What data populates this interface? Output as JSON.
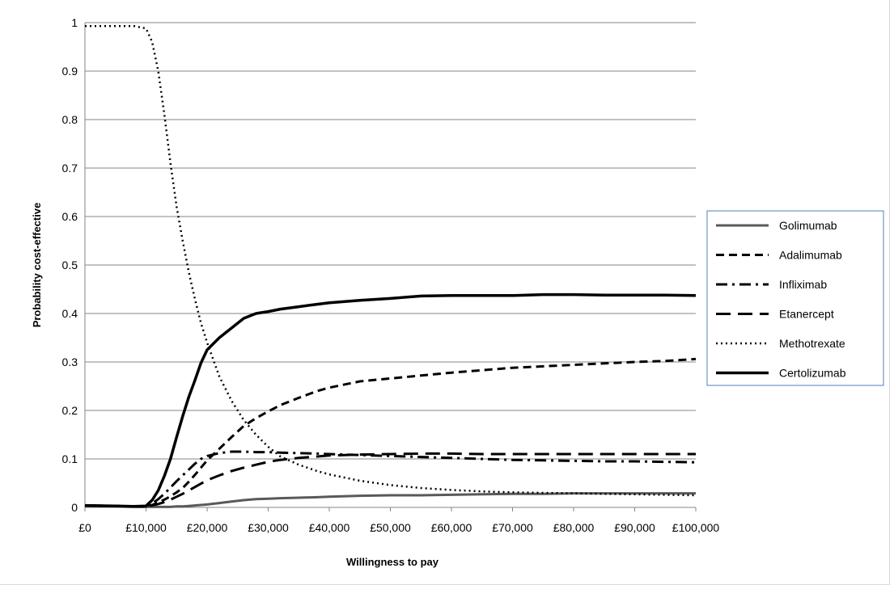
{
  "chart_data": {
    "type": "line",
    "title": "",
    "xlabel": "Willingness to pay",
    "ylabel": "Probability cost-effective",
    "xlim": [
      0,
      100000
    ],
    "ylim": [
      0,
      1
    ],
    "x_ticks": [
      "£0",
      "£10,000",
      "£20,000",
      "£30,000",
      "£40,000",
      "£50,000",
      "£60,000",
      "£70,000",
      "£80,000",
      "£90,000",
      "£100,000"
    ],
    "y_ticks": [
      "0",
      "0.1",
      "0.2",
      "0.3",
      "0.4",
      "0.5",
      "0.6",
      "0.7",
      "0.8",
      "0.9",
      "1"
    ],
    "grid": "horizontal",
    "legend_position": "right",
    "x": [
      0,
      5000,
      8000,
      10000,
      11000,
      12000,
      13000,
      14000,
      15000,
      16000,
      17000,
      18000,
      19000,
      20000,
      22000,
      24000,
      26000,
      28000,
      30000,
      32000,
      35000,
      38000,
      40000,
      45000,
      50000,
      55000,
      60000,
      65000,
      70000,
      75000,
      80000,
      85000,
      90000,
      95000,
      100000
    ],
    "series": [
      {
        "name": "Golimumab",
        "color": "#595959",
        "dash": "solid",
        "width": 3,
        "values": [
          0.003,
          0.002,
          0.001,
          0.001,
          0.001,
          0.001,
          0.001,
          0.001,
          0.002,
          0.002,
          0.003,
          0.004,
          0.005,
          0.006,
          0.009,
          0.012,
          0.015,
          0.017,
          0.018,
          0.019,
          0.02,
          0.021,
          0.022,
          0.024,
          0.025,
          0.025,
          0.026,
          0.027,
          0.028,
          0.028,
          0.029,
          0.029,
          0.029,
          0.029,
          0.029
        ]
      },
      {
        "name": "Adalimumab",
        "color": "#000000",
        "dash": "10,6",
        "width": 3,
        "values": [
          0.004,
          0.003,
          0.002,
          0.002,
          0.005,
          0.01,
          0.016,
          0.023,
          0.031,
          0.04,
          0.053,
          0.067,
          0.082,
          0.097,
          0.121,
          0.145,
          0.168,
          0.184,
          0.198,
          0.211,
          0.226,
          0.24,
          0.247,
          0.26,
          0.266,
          0.272,
          0.278,
          0.283,
          0.288,
          0.291,
          0.294,
          0.297,
          0.3,
          0.302,
          0.306
        ]
      },
      {
        "name": "Infliximab",
        "color": "#000000",
        "dash": "14,6,3,6",
        "width": 3,
        "values": [
          0.004,
          0.003,
          0.002,
          0.002,
          0.008,
          0.017,
          0.028,
          0.041,
          0.054,
          0.066,
          0.078,
          0.09,
          0.1,
          0.106,
          0.112,
          0.115,
          0.115,
          0.114,
          0.114,
          0.113,
          0.112,
          0.111,
          0.11,
          0.108,
          0.106,
          0.104,
          0.102,
          0.1,
          0.098,
          0.097,
          0.096,
          0.095,
          0.095,
          0.094,
          0.093
        ]
      },
      {
        "name": "Etanercept",
        "color": "#000000",
        "dash": "18,9",
        "width": 3,
        "values": [
          0.004,
          0.003,
          0.002,
          0.002,
          0.004,
          0.007,
          0.011,
          0.016,
          0.022,
          0.028,
          0.035,
          0.042,
          0.049,
          0.056,
          0.066,
          0.075,
          0.082,
          0.088,
          0.094,
          0.098,
          0.102,
          0.105,
          0.107,
          0.109,
          0.11,
          0.111,
          0.111,
          0.11,
          0.11,
          0.11,
          0.11,
          0.11,
          0.11,
          0.11,
          0.11
        ]
      },
      {
        "name": "Methotrexate",
        "color": "#000000",
        "dash": "2,4",
        "width": 2.5,
        "values": [
          0.993,
          0.993,
          0.993,
          0.988,
          0.96,
          0.9,
          0.81,
          0.71,
          0.62,
          0.55,
          0.485,
          0.43,
          0.38,
          0.34,
          0.27,
          0.22,
          0.18,
          0.15,
          0.125,
          0.105,
          0.088,
          0.075,
          0.068,
          0.055,
          0.046,
          0.04,
          0.036,
          0.033,
          0.031,
          0.03,
          0.029,
          0.028,
          0.027,
          0.026,
          0.025
        ]
      },
      {
        "name": "Certolizumab",
        "color": "#000000",
        "dash": "solid",
        "width": 3.5,
        "values": [
          0.004,
          0.003,
          0.002,
          0.003,
          0.015,
          0.035,
          0.065,
          0.1,
          0.145,
          0.188,
          0.228,
          0.262,
          0.298,
          0.325,
          0.35,
          0.37,
          0.39,
          0.4,
          0.404,
          0.409,
          0.414,
          0.419,
          0.422,
          0.427,
          0.431,
          0.436,
          0.437,
          0.437,
          0.437,
          0.439,
          0.439,
          0.438,
          0.438,
          0.438,
          0.437
        ]
      }
    ]
  }
}
